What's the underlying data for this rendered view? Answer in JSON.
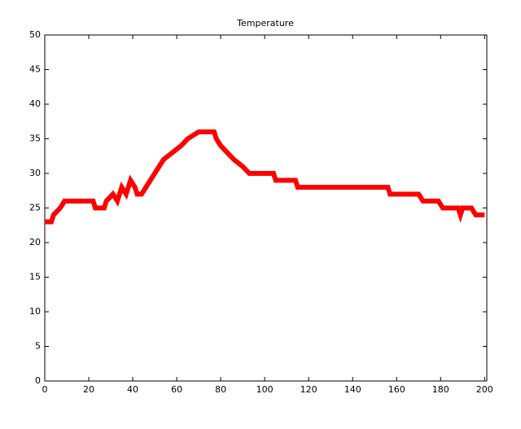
{
  "chart_data": {
    "type": "line",
    "title": "Temperature",
    "x": [
      0,
      3,
      4,
      7,
      9,
      22,
      23,
      27,
      28,
      31,
      33,
      35,
      37,
      39,
      41,
      42,
      44,
      46,
      48,
      50,
      52,
      54,
      58,
      62,
      65,
      70,
      77,
      78,
      80,
      83,
      86,
      90,
      93,
      104,
      105,
      114,
      115,
      156,
      157,
      170,
      172,
      179,
      181,
      188,
      189,
      190,
      194,
      196,
      200
    ],
    "series": [
      {
        "name": "Temperature",
        "color": "#ff0000",
        "values": [
          23,
          23,
          24,
          25,
          26,
          26,
          25,
          25,
          26,
          27,
          26,
          28,
          27,
          29,
          28,
          27,
          27,
          28,
          29,
          30,
          31,
          32,
          33,
          34,
          35,
          36,
          36,
          35,
          34,
          33,
          32,
          31,
          30,
          30,
          29,
          29,
          28,
          28,
          27,
          27,
          26,
          26,
          25,
          25,
          24,
          25,
          25,
          24,
          24
        ]
      }
    ],
    "xlim": [
      0,
      201
    ],
    "xticks": [
      0,
      20,
      40,
      60,
      80,
      100,
      120,
      140,
      160,
      180,
      200
    ],
    "ylim": [
      0,
      50
    ],
    "yticks": [
      0,
      5,
      10,
      15,
      20,
      25,
      30,
      35,
      40,
      45,
      50
    ],
    "grid": false
  }
}
